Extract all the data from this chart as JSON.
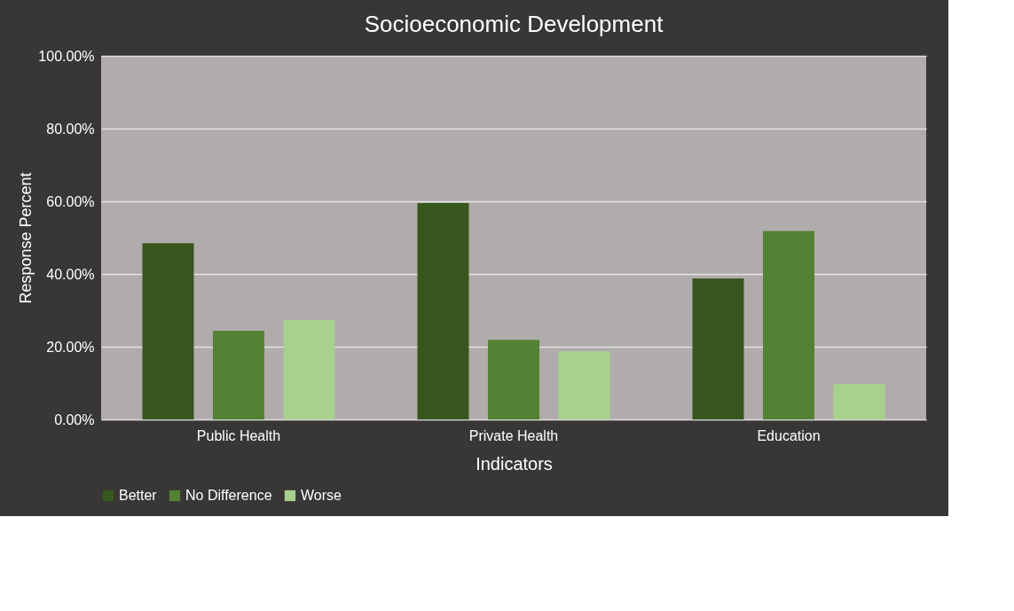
{
  "chart_data": {
    "type": "bar",
    "title": "Socioeconomic Development",
    "xlabel": "Indicators",
    "ylabel": "Response Percent",
    "categories": [
      "Public Health",
      "Private Health",
      "Education"
    ],
    "series": [
      {
        "name": "Better",
        "color": "#38571f",
        "values": [
          48.5,
          59.5,
          38.8
        ]
      },
      {
        "name": "No Difference",
        "color": "#548235",
        "values": [
          24.4,
          21.9,
          51.8
        ]
      },
      {
        "name": "Worse",
        "color": "#a9d18e",
        "values": [
          27.3,
          18.8,
          9.7
        ]
      }
    ],
    "ylim": [
      0,
      100
    ],
    "yticks": [
      {
        "value": 0,
        "label": "0.00%"
      },
      {
        "value": 20,
        "label": "20.00%"
      },
      {
        "value": 40,
        "label": "40.00%"
      },
      {
        "value": 60,
        "label": "60.00%"
      },
      {
        "value": 80,
        "label": "80.00%"
      },
      {
        "value": 100,
        "label": "100.00%"
      }
    ],
    "grid": "y",
    "legend": "bottom"
  }
}
